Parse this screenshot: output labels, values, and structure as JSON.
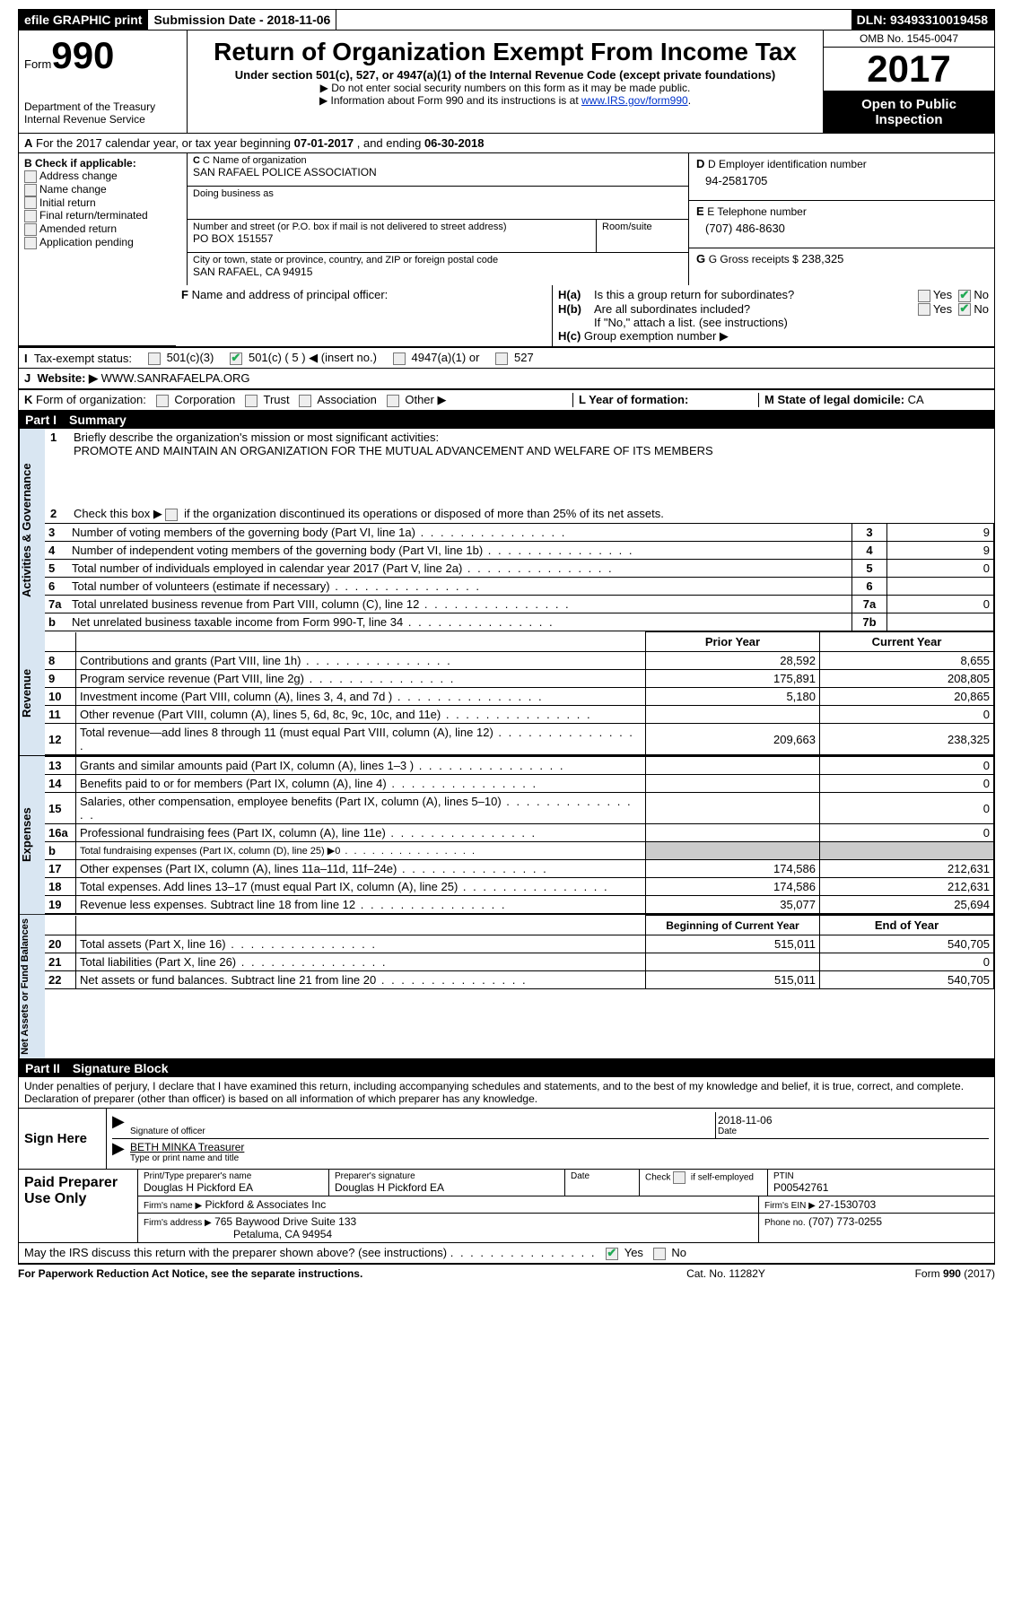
{
  "topbar": {
    "efile": "efile GRAPHIC print",
    "submission_label": "Submission Date -",
    "submission_date": "2018-11-06",
    "dln_label": "DLN:",
    "dln": "93493310019458"
  },
  "header": {
    "form_prefix": "Form",
    "form_number": "990",
    "dept1": "Department of the Treasury",
    "dept2": "Internal Revenue Service",
    "title": "Return of Organization Exempt From Income Tax",
    "sub1": "Under section 501(c), 527, or 4947(a)(1) of the Internal Revenue Code (except private foundations)",
    "sub2": "▶ Do not enter social security numbers on this form as it may be made public.",
    "sub3_pre": "▶ Information about Form 990 and its instructions is at ",
    "sub3_link": "www.IRS.gov/form990",
    "omb": "OMB No. 1545-0047",
    "year": "2017",
    "open": "Open to Public Inspection"
  },
  "row_a": {
    "label": "A",
    "text_pre": "For the 2017 calendar year, or tax year beginning ",
    "begin": "07-01-2017",
    "mid": " , and ending ",
    "end": "06-30-2018"
  },
  "col_b": {
    "label": "B Check if applicable:",
    "items": [
      "Address change",
      "Name change",
      "Initial return",
      "Final return/terminated",
      "Amended return",
      "Application pending"
    ]
  },
  "col_c": {
    "name_lbl": "C Name of organization",
    "name": "SAN RAFAEL POLICE ASSOCIATION",
    "dba_lbl": "Doing business as",
    "dba": "",
    "street_lbl": "Number and street (or P.O. box if mail is not delivered to street address)",
    "room_lbl": "Room/suite",
    "street": "PO BOX 151557",
    "city_lbl": "City or town, state or province, country, and ZIP or foreign postal code",
    "city": "SAN RAFAEL, CA  94915"
  },
  "col_d": {
    "d_lbl": "D Employer identification number",
    "ein": "94-2581705",
    "e_lbl": "E Telephone number",
    "phone": "(707) 486-8630",
    "g_lbl": "G Gross receipts $",
    "gross": "238,325"
  },
  "row_f": {
    "label": "F",
    "text": "Name and address of principal officer:"
  },
  "row_h": {
    "ha_lbl": "H(a)",
    "ha_q": "Is this a group return for subordinates?",
    "ha_yes": "Yes",
    "ha_no": "No",
    "ha_no_checked": true,
    "hb_lbl": "H(b)",
    "hb_q": "Are all subordinates included?",
    "hb_yes": "Yes",
    "hb_no": "No",
    "hb_no_checked": true,
    "hb_note": "If \"No,\" attach a list. (see instructions)",
    "hc_lbl": "H(c)",
    "hc_q": "Group exemption number ▶"
  },
  "row_i": {
    "label": "I",
    "text": "Tax-exempt status:",
    "opt1": "501(c)(3)",
    "opt2": "501(c) ( 5 ) ◀ (insert no.)",
    "opt2_checked": true,
    "opt3": "4947(a)(1) or",
    "opt4": "527"
  },
  "row_j": {
    "label": "J",
    "text": "Website: ▶",
    "value": "WWW.SANRAFAELPA.ORG"
  },
  "row_k": {
    "label": "K",
    "text": "Form of organization:",
    "opts": [
      "Corporation",
      "Trust",
      "Association",
      "Other ▶"
    ],
    "l_lbl": "L Year of formation:",
    "m_lbl": "M State of legal domicile:",
    "m_val": "CA"
  },
  "parts": {
    "p1": "Part I",
    "p1t": "Summary",
    "p2": "Part II",
    "p2t": "Signature Block"
  },
  "summary": {
    "tab_ag": "Activities & Governance",
    "tab_rev": "Revenue",
    "tab_exp": "Expenses",
    "tab_net": "Net Assets or Fund Balances",
    "l1_num": "1",
    "l1": "Briefly describe the organization's mission or most significant activities:",
    "mission": "PROMOTE AND MAINTAIN AN ORGANIZATION FOR THE MUTUAL ADVANCEMENT AND WELFARE OF ITS MEMBERS",
    "l2_num": "2",
    "l2": "Check this box ▶ ",
    "l2b": " if the organization discontinued its operations or disposed of more than 25% of its net assets.",
    "rows_ag": [
      {
        "n": "3",
        "t": "Number of voting members of the governing body (Part VI, line 1a)",
        "rn": "3",
        "v": "9"
      },
      {
        "n": "4",
        "t": "Number of independent voting members of the governing body (Part VI, line 1b)",
        "rn": "4",
        "v": "9"
      },
      {
        "n": "5",
        "t": "Total number of individuals employed in calendar year 2017 (Part V, line 2a)",
        "rn": "5",
        "v": "0"
      },
      {
        "n": "6",
        "t": "Total number of volunteers (estimate if necessary)",
        "rn": "6",
        "v": ""
      },
      {
        "n": "7a",
        "t": "Total unrelated business revenue from Part VIII, column (C), line 12",
        "rn": "7a",
        "v": "0"
      },
      {
        "n": "b",
        "t": "Net unrelated business taxable income from Form 990-T, line 34",
        "rn": "7b",
        "v": ""
      }
    ],
    "hdr_prior": "Prior Year",
    "hdr_curr": "Current Year",
    "rows_rev": [
      {
        "n": "8",
        "t": "Contributions and grants (Part VIII, line 1h)",
        "p": "28,592",
        "c": "8,655"
      },
      {
        "n": "9",
        "t": "Program service revenue (Part VIII, line 2g)",
        "p": "175,891",
        "c": "208,805"
      },
      {
        "n": "10",
        "t": "Investment income (Part VIII, column (A), lines 3, 4, and 7d )",
        "p": "5,180",
        "c": "20,865"
      },
      {
        "n": "11",
        "t": "Other revenue (Part VIII, column (A), lines 5, 6d, 8c, 9c, 10c, and 11e)",
        "p": "",
        "c": "0"
      },
      {
        "n": "12",
        "t": "Total revenue—add lines 8 through 11 (must equal Part VIII, column (A), line 12)",
        "p": "209,663",
        "c": "238,325"
      }
    ],
    "rows_exp": [
      {
        "n": "13",
        "t": "Grants and similar amounts paid (Part IX, column (A), lines 1–3 )",
        "p": "",
        "c": "0"
      },
      {
        "n": "14",
        "t": "Benefits paid to or for members (Part IX, column (A), line 4)",
        "p": "",
        "c": "0"
      },
      {
        "n": "15",
        "t": "Salaries, other compensation, employee benefits (Part IX, column (A), lines 5–10)",
        "p": "",
        "c": "0"
      },
      {
        "n": "16a",
        "t": "Professional fundraising fees (Part IX, column (A), line 11e)",
        "p": "",
        "c": "0"
      },
      {
        "n": "b",
        "t": "Total fundraising expenses (Part IX, column (D), line 25) ▶0",
        "p": "GREY",
        "c": "GREY",
        "small": true
      },
      {
        "n": "17",
        "t": "Other expenses (Part IX, column (A), lines 11a–11d, 11f–24e)",
        "p": "174,586",
        "c": "212,631"
      },
      {
        "n": "18",
        "t": "Total expenses. Add lines 13–17 (must equal Part IX, column (A), line 25)",
        "p": "174,586",
        "c": "212,631"
      },
      {
        "n": "19",
        "t": "Revenue less expenses. Subtract line 18 from line 12",
        "p": "35,077",
        "c": "25,694"
      }
    ],
    "hdr_boy": "Beginning of Current Year",
    "hdr_eoy": "End of Year",
    "rows_net": [
      {
        "n": "20",
        "t": "Total assets (Part X, line 16)",
        "p": "515,011",
        "c": "540,705"
      },
      {
        "n": "21",
        "t": "Total liabilities (Part X, line 26)",
        "p": "",
        "c": "0"
      },
      {
        "n": "22",
        "t": "Net assets or fund balances. Subtract line 21 from line 20",
        "p": "515,011",
        "c": "540,705"
      }
    ]
  },
  "sig": {
    "decl": "Under penalties of perjury, I declare that I have examined this return, including accompanying schedules and statements, and to the best of my knowledge and belief, it is true, correct, and complete. Declaration of preparer (other than officer) is based on all information of which preparer has any knowledge.",
    "sign_here": "Sign Here",
    "sig_of": "Signature of officer",
    "date_lbl": "Date",
    "date": "2018-11-06",
    "name": "BETH MINKA Treasurer",
    "name_lbl": "Type or print name and title"
  },
  "prep": {
    "title": "Paid Preparer Use Only",
    "h1": "Print/Type preparer's name",
    "h2": "Preparer's signature",
    "h3": "Date",
    "h4_pre": "Check",
    "h4_post": "if self-employed",
    "h5": "PTIN",
    "name": "Douglas H Pickford EA",
    "sig": "Douglas H Pickford EA",
    "ptin": "P00542761",
    "firm_lbl": "Firm's name    ▶",
    "firm": "Pickford & Associates Inc",
    "ein_lbl": "Firm's EIN ▶",
    "ein": "27-1530703",
    "addr_lbl": "Firm's address ▶",
    "addr1": "765 Baywood Drive Suite 133",
    "addr2": "Petaluma, CA  94954",
    "ph_lbl": "Phone no.",
    "phone": "(707) 773-0255"
  },
  "may": {
    "q": "May the IRS discuss this return with the preparer shown above? (see instructions)",
    "yes": "Yes",
    "no": "No",
    "yes_checked": true
  },
  "footer": {
    "l": "For Paperwork Reduction Act Notice, see the separate instructions.",
    "m": "Cat. No. 11282Y",
    "r": "Form 990 (2017)"
  }
}
